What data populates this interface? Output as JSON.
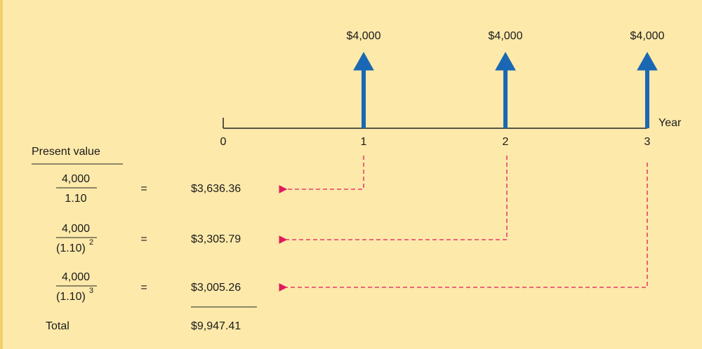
{
  "timeline": {
    "axis_label": "Year",
    "periods": [
      "0",
      "1",
      "2",
      "3"
    ],
    "cash_flows": [
      "$4,000",
      "$4,000",
      "$4,000"
    ]
  },
  "present_value": {
    "heading": "Present value",
    "rows": [
      {
        "numerator": "4,000",
        "denominator": "1.10",
        "equals": "=",
        "value": "$3,636.36"
      },
      {
        "numerator": "4,000",
        "denominator": "(1.10)",
        "exponent": "2",
        "equals": "=",
        "value": "$3,305.79"
      },
      {
        "numerator": "4,000",
        "denominator": "(1.10)",
        "exponent": "3",
        "equals": "=",
        "value": "$3,005.26"
      }
    ],
    "total_label": "Total",
    "total": "$9,947.41"
  }
}
